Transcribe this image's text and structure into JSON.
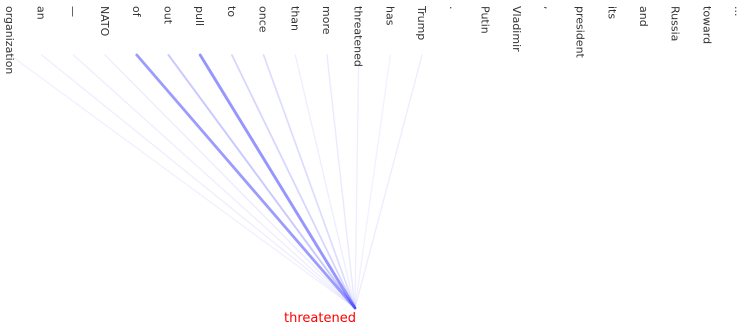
{
  "target": {
    "text": "threatened",
    "color": "#ff0000"
  },
  "colors": {
    "link": "#3f3fff",
    "token_default": "#333333",
    "token_highlight": "#228b22"
  },
  "tokens": [
    {
      "text": "organization",
      "weight": 0.04,
      "highlight": false
    },
    {
      "text": "an",
      "weight": 0.05,
      "highlight": false
    },
    {
      "text": "—",
      "weight": 0.05,
      "highlight": false
    },
    {
      "text": "NATO",
      "weight": 0.06,
      "highlight": true
    },
    {
      "text": "of",
      "weight": 0.62,
      "highlight": false
    },
    {
      "text": "out",
      "weight": 0.3,
      "highlight": false
    },
    {
      "text": "pull",
      "weight": 0.66,
      "highlight": false
    },
    {
      "text": "to",
      "weight": 0.22,
      "highlight": false
    },
    {
      "text": "once",
      "weight": 0.18,
      "highlight": false
    },
    {
      "text": "than",
      "weight": 0.05,
      "highlight": false
    },
    {
      "text": "more",
      "weight": 0.08,
      "highlight": false
    },
    {
      "text": "threatened",
      "weight": 0.05,
      "highlight": false
    },
    {
      "text": "has",
      "weight": 0.03,
      "highlight": false
    },
    {
      "text": "Trump",
      "weight": 0.06,
      "highlight": false
    },
    {
      "text": ".",
      "weight": 0.0,
      "highlight": false
    },
    {
      "text": "Putin",
      "weight": 0.0,
      "highlight": false
    },
    {
      "text": "Vladimir",
      "weight": 0.0,
      "highlight": false
    },
    {
      "text": ",",
      "weight": 0.0,
      "highlight": false
    },
    {
      "text": "president",
      "weight": 0.0,
      "highlight": false
    },
    {
      "text": "its",
      "weight": 0.0,
      "highlight": false
    },
    {
      "text": "and",
      "weight": 0.0,
      "highlight": false
    },
    {
      "text": "Russia",
      "weight": 0.0,
      "highlight": false
    },
    {
      "text": "toward",
      "weight": 0.0,
      "highlight": false
    },
    {
      "text": "...",
      "weight": 0.0,
      "highlight": false
    }
  ]
}
